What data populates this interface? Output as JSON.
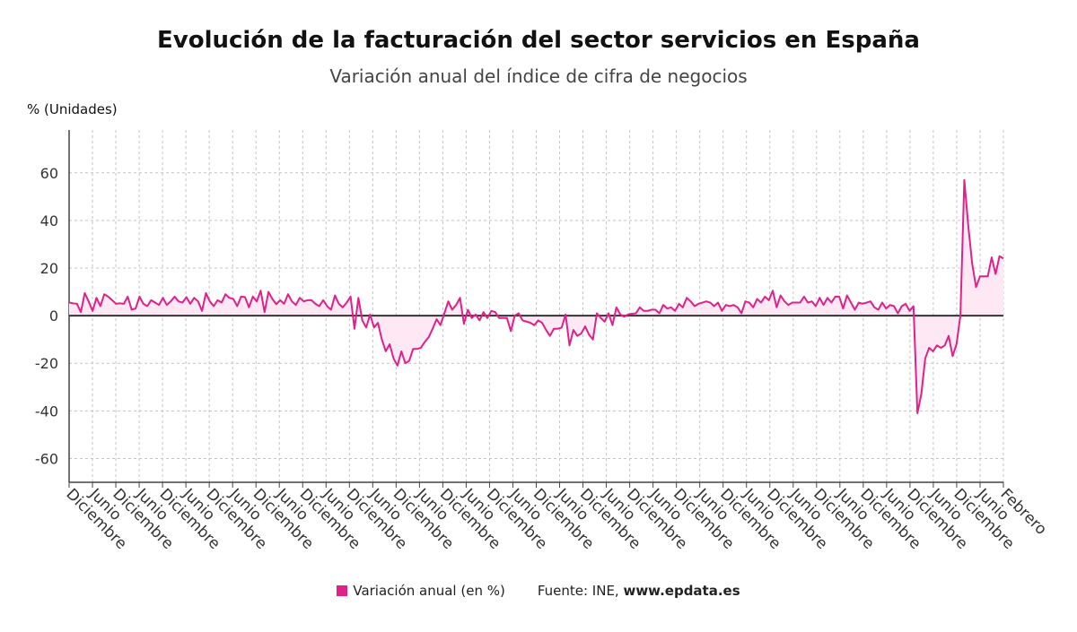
{
  "chart_data": {
    "type": "line",
    "title": "Evolución de la facturación del sector servicios en España",
    "subtitle": "Variación anual del índice de cifra de negocios",
    "ylabel": "% (Unidades)",
    "xlabel": "",
    "ylim": [
      -70,
      78
    ],
    "yticks": [
      60,
      40,
      20,
      0,
      -20,
      -40,
      -60
    ],
    "grid": true,
    "area_fill": true,
    "legend_position": "bottom",
    "x_tick_labels": [
      "Diciembre",
      "Junio",
      "Diciembre",
      "Junio",
      "Diciembre",
      "Junio",
      "Diciembre",
      "Junio",
      "Diciembre",
      "Junio",
      "Diciembre",
      "Junio",
      "Diciembre",
      "Junio",
      "Diciembre",
      "Junio",
      "Diciembre",
      "Junio",
      "Diciembre",
      "Junio",
      "Diciembre",
      "Junio",
      "Diciembre",
      "Junio",
      "Diciembre",
      "Junio",
      "Diciembre",
      "Junio",
      "Diciembre",
      "Junio",
      "Diciembre",
      "Junio",
      "Diciembre",
      "Junio",
      "Diciembre",
      "Junio",
      "Diciembre",
      "Junio",
      "Diciembre",
      "Junio",
      "Febrero"
    ],
    "series": [
      {
        "name": "Variación anual (en %)",
        "color": "#e0218a",
        "values": [
          5.5,
          5.2,
          5,
          1.5,
          9.5,
          6,
          2,
          7.5,
          4,
          9,
          8,
          6.5,
          5,
          5.2,
          5,
          8,
          2.5,
          3,
          8,
          5,
          4,
          6.5,
          5.5,
          4.5,
          7.5,
          4.5,
          6,
          8,
          6,
          5.5,
          7.8,
          5,
          7.5,
          6,
          2,
          9.5,
          6,
          4,
          6.5,
          5.5,
          9,
          7.5,
          7,
          4,
          8,
          7.8,
          3.5,
          8,
          6,
          10.5,
          1.5,
          10,
          7,
          4.8,
          6.5,
          5,
          9,
          6,
          4.5,
          7.5,
          6,
          6.5,
          6.5,
          5,
          4,
          6.5,
          4,
          2.5,
          8.5,
          5,
          3.5,
          5.5,
          8,
          -5.5,
          7.5,
          -2,
          -5,
          0.5,
          -5,
          -3,
          -10,
          -15,
          -12,
          -18,
          -21,
          -15,
          -20,
          -19,
          -14,
          -14,
          -13.5,
          -11,
          -9,
          -5.5,
          -1.5,
          -4,
          1,
          6,
          2.5,
          4.5,
          7.5,
          -3.5,
          2.5,
          -1,
          0.5,
          -2,
          1.5,
          -1,
          2,
          1.5,
          -1,
          -1,
          -1,
          -6.5,
          0,
          1,
          -2,
          -2.5,
          -3,
          -4,
          -2,
          -3,
          -6,
          -8.5,
          -5.5,
          -5.5,
          -5,
          0.5,
          -12.5,
          -6,
          -8.5,
          -7.5,
          -4.5,
          -8,
          -10,
          1,
          -1,
          -2.5,
          1,
          -4,
          3.5,
          0.5,
          -0.5,
          0.5,
          0.8,
          1,
          3.5,
          2,
          2,
          2.5,
          2.5,
          1,
          4.5,
          3,
          3.5,
          2,
          5,
          3.5,
          7.5,
          6,
          4,
          5,
          5.5,
          6,
          5.5,
          4,
          5.5,
          2,
          4.5,
          4,
          4.5,
          3.5,
          1,
          6,
          5.5,
          3.5,
          7,
          5.5,
          8,
          6.5,
          10.5,
          3.5,
          8.5,
          6,
          4.5,
          5.5,
          5.5,
          5.5,
          8,
          5.5,
          6,
          4,
          7.5,
          4.5,
          7.5,
          5.5,
          8,
          8,
          3,
          8.5,
          5.5,
          2.5,
          5.5,
          5,
          5.5,
          6,
          3.5,
          2.5,
          5.5,
          3,
          4.5,
          4,
          1,
          4,
          5,
          2,
          4,
          -41,
          -33,
          -18,
          -13.5,
          -15,
          -12.5,
          -13.5,
          -12.5,
          -8.5,
          -17,
          -12,
          0,
          57,
          38,
          22,
          12,
          16.5,
          16.5,
          16.5,
          24.5,
          17.5,
          25,
          24
        ]
      }
    ],
    "legend": {
      "label": "Variación anual (en %)",
      "source_prefix": "Fuente: INE, ",
      "source_site": "www.epdata.es"
    },
    "colors": {
      "line": "#e0218a",
      "fill": "#fde8f3",
      "grid": "#c4c4c4",
      "zero": "#333333",
      "axis": "#444444"
    }
  }
}
